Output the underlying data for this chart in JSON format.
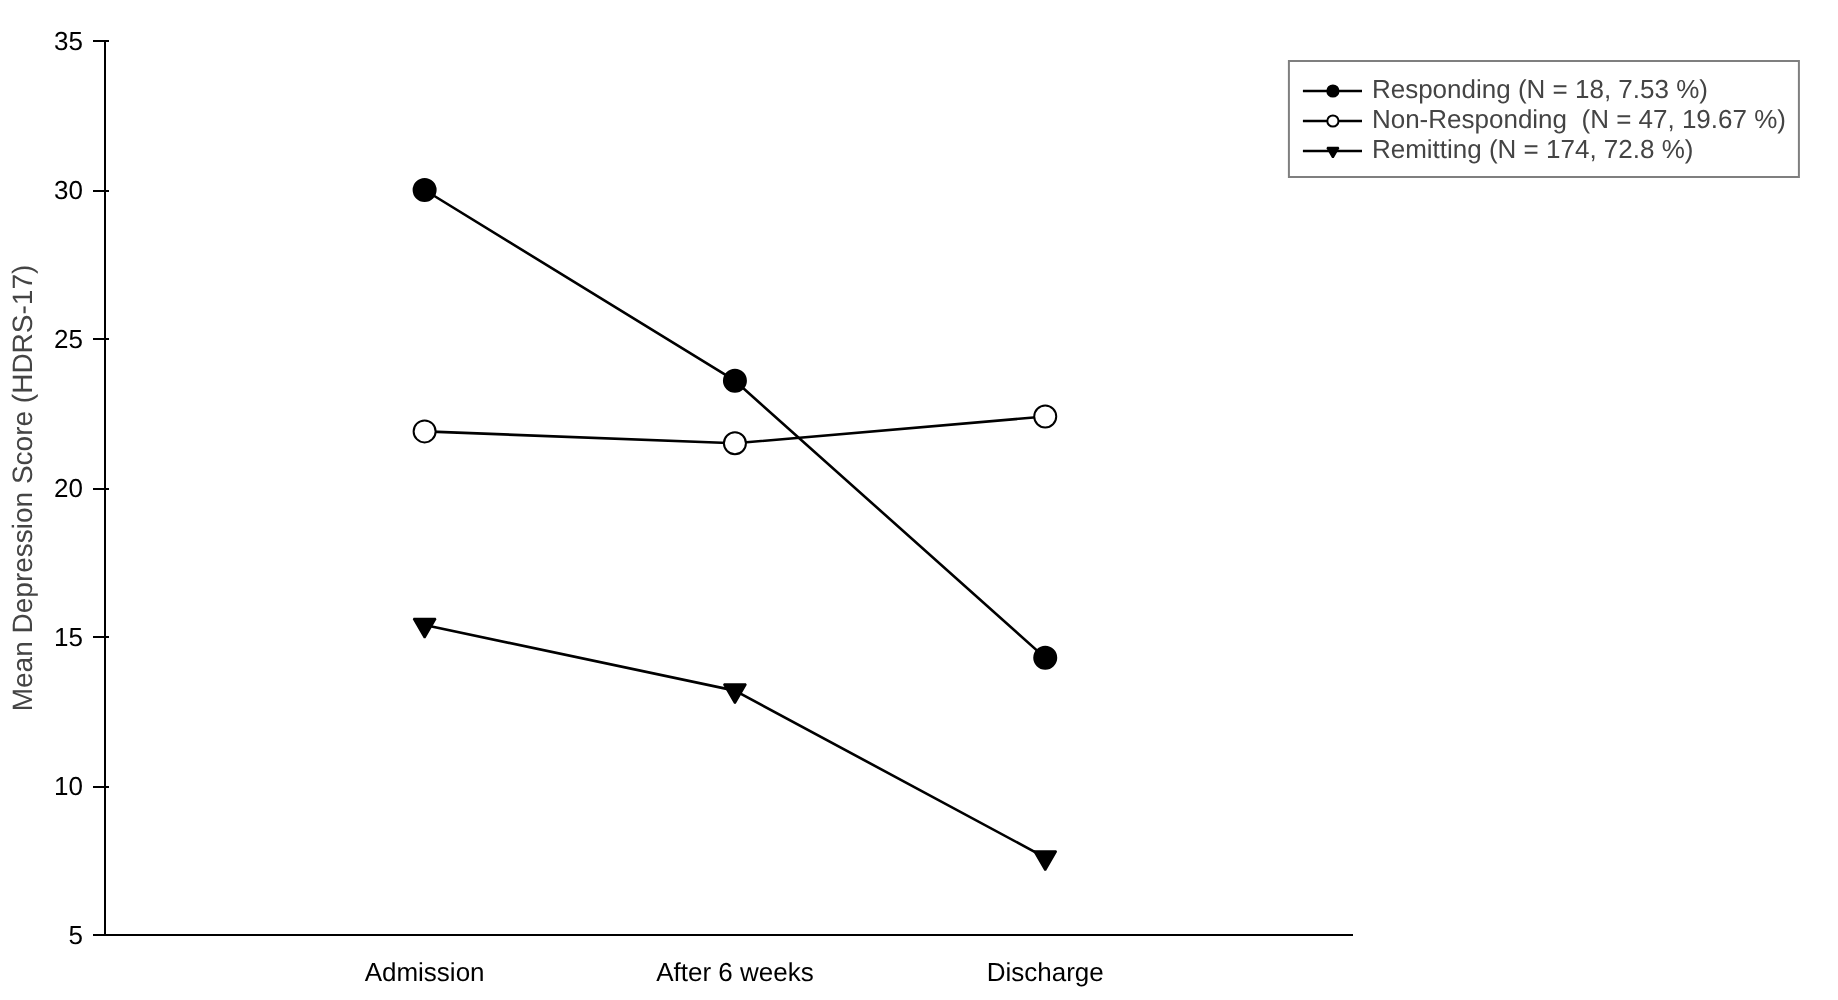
{
  "chart_data": {
    "type": "line",
    "ylabel": "Mean Depression Score (HDRS-17)",
    "categories": [
      "Admission",
      "After 6 weeks",
      "Discharge"
    ],
    "ylim": [
      5,
      35
    ],
    "yticks": [
      5,
      10,
      15,
      20,
      25,
      30,
      35
    ],
    "grid": false,
    "legend": "top right",
    "line_style": "solid",
    "series": [
      {
        "name": "Responding (N = 18, 7.53 %)",
        "color": "#000000",
        "marker": "circle",
        "values": [
          30.0,
          23.6,
          14.3
        ]
      },
      {
        "name": "Non-Responding  (N = 47, 19.67 %)",
        "color": "#000000",
        "marker": "circle_open",
        "values": [
          21.9,
          21.5,
          22.4
        ]
      },
      {
        "name": "Remitting (N = 174, 72.8 %)",
        "color": "#000000",
        "marker": "triangle",
        "values": [
          15.4,
          13.2,
          7.6
        ]
      }
    ]
  }
}
